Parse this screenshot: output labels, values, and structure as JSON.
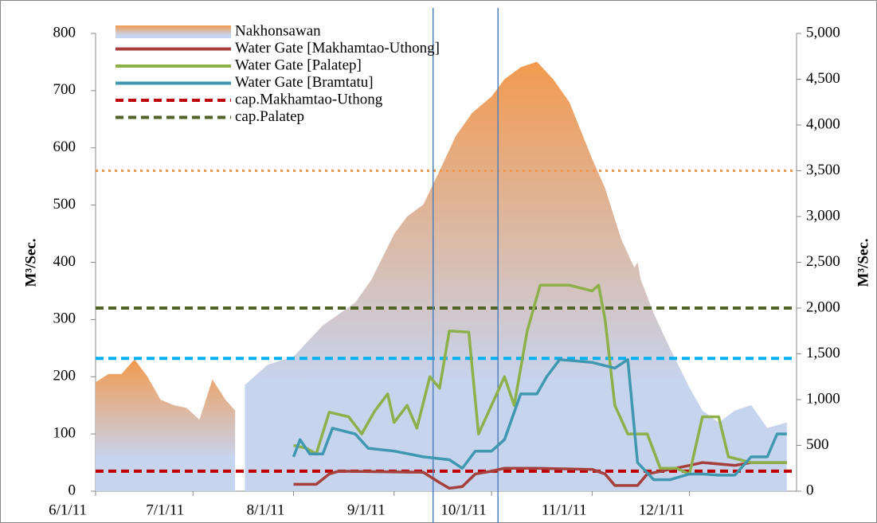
{
  "chart_data": {
    "type": "line",
    "y_label": "M³/Sec.",
    "y2_label": "M³/Sec.",
    "ylim": [
      0,
      800
    ],
    "yticks": [
      0,
      100,
      200,
      300,
      400,
      500,
      600,
      700,
      800
    ],
    "y2lim": [
      0,
      5000
    ],
    "y2ticks": [
      0,
      500,
      {
        "value": 1000,
        "label": "1,000"
      },
      {
        "value": 1500,
        "label": "1,500"
      },
      {
        "value": 2000,
        "label": "2,000"
      },
      {
        "value": 2500,
        "label": "2,500"
      },
      {
        "value": 3000,
        "label": "3,000"
      },
      {
        "value": 3500,
        "label": "3,500"
      },
      {
        "value": 4000,
        "label": "4,000"
      },
      {
        "value": 4500,
        "label": "4,500"
      },
      {
        "value": 5000,
        "label": "5,000"
      }
    ],
    "xlim": [
      "6/1/11",
      "1/3/12"
    ],
    "xticks": [
      "6/1/11",
      "7/1/11",
      "8/1/11",
      "9/1/11",
      "10/1/11",
      "11/1/11",
      "12/1/11"
    ],
    "series": [
      {
        "name": "Nakhonsawan",
        "type": "area",
        "axis": "y2",
        "color": "#f39a4f",
        "fill_bottom_color": "#c7d4ee",
        "x": [
          "6/1/11",
          "6/5/11",
          "6/9/11",
          "6/13/11",
          "6/17/11",
          "6/21/11",
          "6/25/11",
          "6/29/11",
          "7/3/11",
          "7/7/11",
          "7/11/11",
          "7/14/11",
          "7/15/11",
          "7/17/11",
          "7/24/11",
          "8/1/11",
          "8/10/11",
          "8/20/11",
          "8/25/11",
          "9/1/11",
          "9/5/11",
          "9/10/11",
          "9/15/11",
          "9/20/11",
          "9/25/11",
          "10/1/11",
          "10/5/11",
          "10/10/11",
          "10/15/11",
          "10/20/11",
          "10/25/11",
          "11/1/11",
          "11/5/11",
          "11/10/11",
          "11/14/11",
          "11/15/11",
          "11/16/11",
          "11/20/11",
          "11/25/11",
          "12/1/11",
          "12/5/11",
          "12/10/11",
          "12/15/11",
          "12/20/11",
          "12/25/11",
          "12/31/11"
        ],
        "values": [
          1190,
          1280,
          1280,
          1440,
          1250,
          1000,
          940,
          910,
          780,
          1220,
          1000,
          880,
          null,
          1160,
          1380,
          1470,
          1810,
          2060,
          2310,
          2810,
          3000,
          3130,
          3500,
          3880,
          4130,
          4310,
          4500,
          4630,
          4690,
          4500,
          4250,
          3630,
          3310,
          2750,
          2440,
          2500,
          2310,
          1940,
          1560,
          1130,
          880,
          750,
          880,
          940,
          690,
          750
        ]
      },
      {
        "name": "Water Gate [Makhamtao-Uthong]",
        "type": "line",
        "color": "#a5403c",
        "x": [
          "8/1/11",
          "8/8/11",
          "8/12/11",
          "8/15/11",
          "9/10/11",
          "9/15/11",
          "9/18/11",
          "9/22/11",
          "9/26/11",
          "10/1/11",
          "10/5/11",
          "10/15/11",
          "11/1/11",
          "11/5/11",
          "11/8/11",
          "11/15/11",
          "11/18/11",
          "12/1/11",
          "12/5/11",
          "12/15/11",
          "12/20/11",
          "12/31/11"
        ],
        "values": [
          12,
          12,
          30,
          35,
          33,
          15,
          5,
          8,
          30,
          35,
          40,
          40,
          38,
          30,
          10,
          10,
          30,
          45,
          50,
          45,
          50,
          50
        ]
      },
      {
        "name": "Water Gate [Palatep]",
        "type": "line",
        "color": "#8db04a",
        "x": [
          "8/1/11",
          "8/5/11",
          "8/8/11",
          "8/12/11",
          "8/18/11",
          "8/22/11",
          "8/26/11",
          "8/30/11",
          "9/1/11",
          "9/5/11",
          "9/8/11",
          "9/12/11",
          "9/15/11",
          "9/18/11",
          "9/24/11",
          "9/27/11",
          "10/1/11",
          "10/5/11",
          "10/8/11",
          "10/12/11",
          "10/16/11",
          "10/25/11",
          "11/1/11",
          "11/3/11",
          "11/5/11",
          "11/8/11",
          "11/12/11",
          "11/18/11",
          "11/22/11",
          "11/27/11",
          "12/1/11",
          "12/5/11",
          "12/10/11",
          "12/13/11",
          "12/20/11",
          "12/31/11"
        ],
        "values": [
          80,
          75,
          65,
          138,
          130,
          100,
          140,
          170,
          120,
          150,
          110,
          200,
          180,
          280,
          278,
          100,
          150,
          200,
          150,
          280,
          360,
          360,
          350,
          360,
          300,
          150,
          100,
          100,
          40,
          40,
          30,
          130,
          130,
          60,
          50,
          50
        ]
      },
      {
        "name": "Water Gate [Bramtatu]",
        "type": "line",
        "color": "#3f97b0",
        "x": [
          "8/1/11",
          "8/3/11",
          "8/6/11",
          "8/10/11",
          "8/13/11",
          "8/20/11",
          "8/24/11",
          "9/1/11",
          "9/10/11",
          "9/18/11",
          "9/22/11",
          "9/26/11",
          "10/1/11",
          "10/5/11",
          "10/10/11",
          "10/15/11",
          "10/18/11",
          "10/22/11",
          "11/1/11",
          "11/8/11",
          "11/12/11",
          "11/15/11",
          "11/20/11",
          "11/25/11",
          "12/1/11",
          "12/5/11",
          "12/10/11",
          "12/15/11",
          "12/20/11",
          "12/25/11",
          "12/28/11",
          "12/31/11"
        ],
        "values": [
          60,
          90,
          65,
          65,
          110,
          100,
          75,
          70,
          60,
          55,
          40,
          70,
          70,
          90,
          170,
          170,
          200,
          230,
          225,
          215,
          230,
          50,
          20,
          20,
          30,
          30,
          28,
          28,
          60,
          60,
          100,
          100
        ]
      }
    ],
    "reference_lines": [
      {
        "name": "cap.Makhamtao-Uthong",
        "value": 35,
        "color": "#c00000",
        "style": "dashed"
      },
      {
        "name": "cap.Palatep",
        "value": 320,
        "color": "#4f6228",
        "style": "dashed"
      },
      {
        "value": 3500,
        "axis": "y2",
        "color": "#f79646",
        "style": "dotted"
      },
      {
        "value": 232,
        "color": "#00b0f0",
        "style": "dashed"
      }
    ],
    "vertical_lines": [
      "9/13/11",
      "10/3/11"
    ],
    "vertical_line_color": "#4f81bd"
  }
}
